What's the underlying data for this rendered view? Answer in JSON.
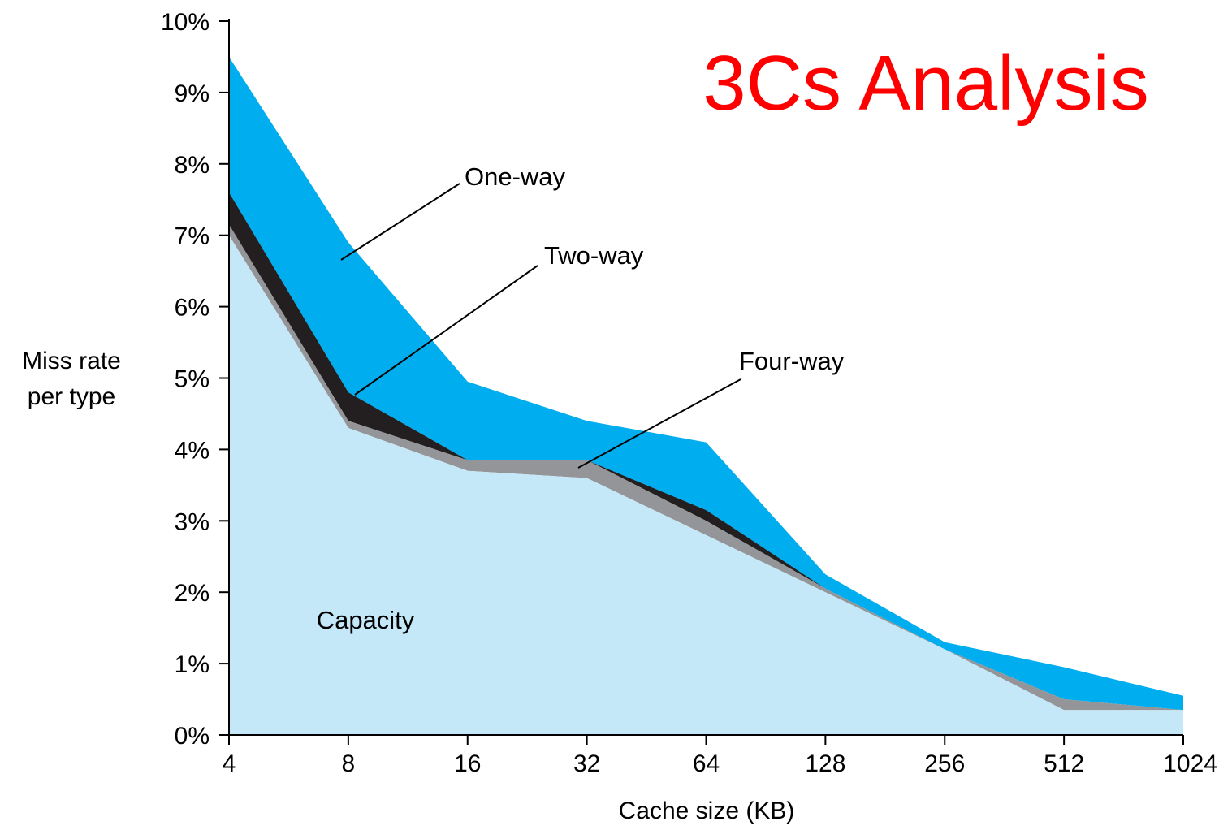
{
  "title": "3Cs Analysis",
  "chart_data": {
    "type": "area",
    "title": "",
    "xlabel": "Cache size (KB)",
    "ylabel": "Miss rate per type",
    "ylabel_lines": [
      "Miss rate",
      "per type"
    ],
    "categories": [
      "4",
      "8",
      "16",
      "32",
      "64",
      "128",
      "256",
      "512",
      "1024"
    ],
    "yticks": [
      "0%",
      "1%",
      "2%",
      "3%",
      "4%",
      "5%",
      "6%",
      "7%",
      "8%",
      "9%",
      "10%"
    ],
    "ylim": [
      0,
      10
    ],
    "x_scale": "log2",
    "stacked_boundaries_percent": {
      "capacity": [
        7.0,
        4.3,
        3.7,
        3.6,
        2.8,
        2.0,
        1.2,
        0.35,
        0.35
      ],
      "plus_four_way": [
        7.15,
        4.4,
        3.85,
        3.85,
        3.0,
        2.05,
        1.2,
        0.5,
        0.35
      ],
      "plus_two_way": [
        7.6,
        4.8,
        3.85,
        3.85,
        3.15,
        2.05,
        1.2,
        0.5,
        0.35
      ],
      "plus_one_way": [
        9.5,
        6.9,
        4.95,
        4.4,
        4.1,
        2.25,
        1.3,
        0.95,
        0.55
      ]
    },
    "series": [
      {
        "name": "Capacity",
        "color": "#c5e8f8"
      },
      {
        "name": "Four-way",
        "color": "#939598"
      },
      {
        "name": "Two-way",
        "color": "#231f20"
      },
      {
        "name": "One-way",
        "color": "#00aeef"
      }
    ],
    "annotations": [
      {
        "text": "One-way",
        "points_to": "8"
      },
      {
        "text": "Two-way",
        "points_to": "8"
      },
      {
        "text": "Four-way",
        "points_to": "32"
      }
    ],
    "grid": false,
    "legend": "none"
  }
}
